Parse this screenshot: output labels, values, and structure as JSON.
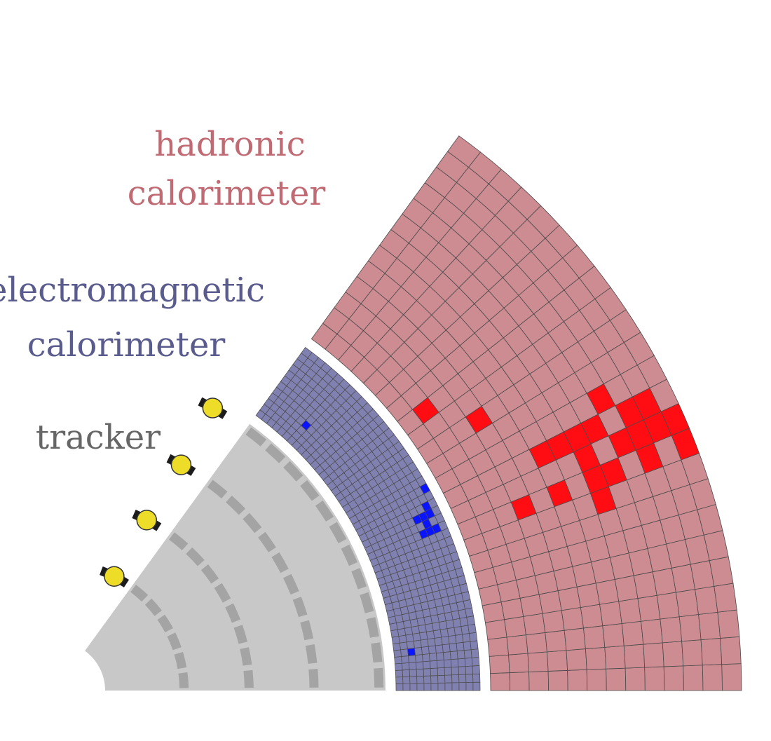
{
  "labels": {
    "hcal_line1": "hadronic",
    "hcal_line2": "calorimeter",
    "ecal_line1": "electromagnetic",
    "ecal_line2": "calorimeter",
    "tracker": "tracker"
  },
  "colors": {
    "hcal_fill": "#cd8c92",
    "hcal_hit": "#ff0d12",
    "hcal_text": "#c06a73",
    "ecal_fill": "#8081b0",
    "ecal_hit": "#0a14ff",
    "ecal_text": "#5a5c8e",
    "tracker_fill": "#c8c8c8",
    "tracker_text": "#666666",
    "layer_segment": "#a4a4a4",
    "hit_segment": "#1c1c1c",
    "hit_point": "#eedd28",
    "cell_border": "#4a4a4a"
  },
  "tracker": {
    "layers": 4,
    "hits": [
      {
        "layer": 1,
        "angle_deg": 63
      },
      {
        "layer": 2,
        "angle_deg": 62
      },
      {
        "layer": 3,
        "angle_deg": 61
      },
      {
        "layer": 4,
        "angle_deg": 61
      }
    ]
  },
  "ecal": {
    "rings": 12,
    "sectors": 48,
    "hit_cells": [
      [
        8,
        20
      ],
      [
        9,
        20
      ],
      [
        10,
        20
      ],
      [
        8,
        22
      ],
      [
        9,
        22
      ],
      [
        10,
        22
      ],
      [
        9,
        21
      ],
      [
        10,
        23
      ],
      [
        11,
        25
      ],
      [
        3,
        41
      ],
      [
        2,
        5
      ]
    ]
  },
  "hcal": {
    "rings": 13,
    "sectors": 24,
    "hit_cells": [
      [
        1,
        16
      ],
      [
        3,
        14
      ],
      [
        3,
        9
      ],
      [
        5,
        9
      ],
      [
        5,
        11
      ],
      [
        6,
        11
      ],
      [
        7,
        8
      ],
      [
        7,
        9
      ],
      [
        7,
        10
      ],
      [
        7,
        11
      ],
      [
        8,
        11
      ],
      [
        8,
        9
      ],
      [
        9,
        10
      ],
      [
        9,
        12
      ],
      [
        10,
        9
      ],
      [
        10,
        10
      ],
      [
        10,
        11
      ],
      [
        11,
        10
      ],
      [
        11,
        11
      ],
      [
        12,
        9
      ],
      [
        12,
        10
      ]
    ]
  }
}
